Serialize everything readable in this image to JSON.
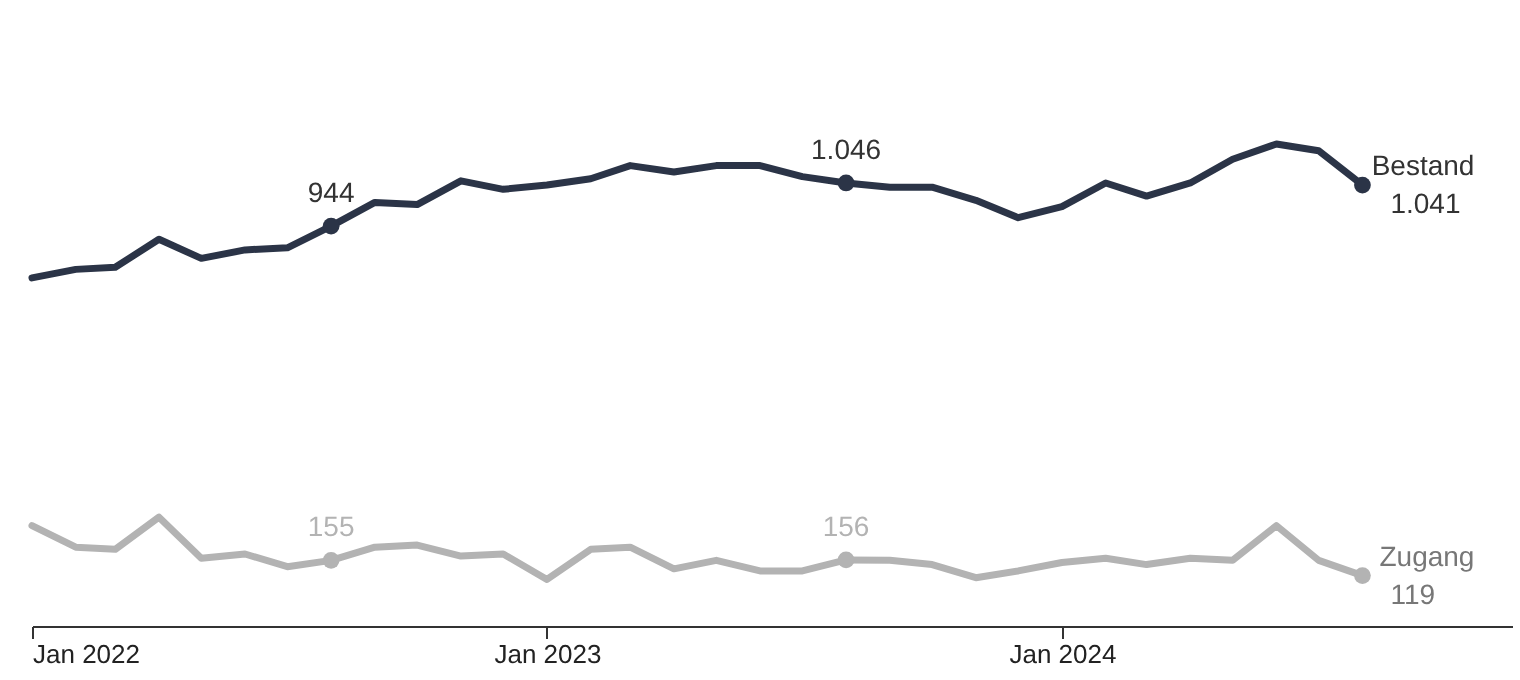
{
  "chart_data": {
    "type": "line",
    "x": [
      "2022-01",
      "2022-02",
      "2022-03",
      "2022-04",
      "2022-05",
      "2022-06",
      "2022-07",
      "2022-08",
      "2022-09",
      "2022-10",
      "2022-11",
      "2022-12",
      "2023-01",
      "2023-02",
      "2023-03",
      "2023-04",
      "2023-05",
      "2023-06",
      "2023-07",
      "2023-08",
      "2023-09",
      "2023-10",
      "2023-11",
      "2023-12",
      "2024-01",
      "2024-02",
      "2024-03",
      "2024-04",
      "2024-05",
      "2024-06",
      "2024-07",
      "2024-08"
    ],
    "series": [
      {
        "name": "Bestand",
        "color": "#2b3447",
        "values": [
          822,
          842,
          847,
          913,
          868,
          888,
          893,
          944,
          1000,
          995,
          1051,
          1031,
          1041,
          1056,
          1087,
          1072,
          1087,
          1087,
          1061,
          1046,
          1036,
          1036,
          1005,
          964,
          990,
          1046,
          1015,
          1046,
          1102,
          1138,
          1122,
          1041
        ],
        "value_labels": [
          null,
          null,
          null,
          null,
          null,
          null,
          null,
          "944",
          null,
          null,
          null,
          null,
          null,
          null,
          null,
          null,
          null,
          null,
          null,
          "1.046",
          null,
          null,
          null,
          null,
          null,
          null,
          null,
          null,
          null,
          null,
          null,
          "1.041"
        ]
      },
      {
        "name": "Zugang",
        "color": "#b3b3b3",
        "values": [
          237,
          186,
          181,
          257,
          160,
          170,
          140,
          155,
          186,
          191,
          165,
          170,
          110,
          181,
          186,
          135,
          155,
          130,
          130,
          156,
          155,
          145,
          114,
          130,
          150,
          160,
          145,
          160,
          155,
          237,
          155,
          119
        ],
        "value_labels": [
          null,
          null,
          null,
          null,
          null,
          null,
          null,
          "155",
          null,
          null,
          null,
          null,
          null,
          null,
          null,
          null,
          null,
          null,
          null,
          "156",
          null,
          null,
          null,
          null,
          null,
          null,
          null,
          null,
          null,
          null,
          null,
          "119"
        ]
      }
    ],
    "xlim": [
      "2022-01-01",
      "2024-11-15"
    ],
    "xticks": [
      {
        "value": "2022-01",
        "label": "Jan 2022"
      },
      {
        "value": "2023-01",
        "label": "Jan 2023"
      },
      {
        "value": "2024-01",
        "label": "Jan 2024"
      }
    ],
    "tick_labels": "x",
    "grid": false,
    "line_style": "solid"
  }
}
